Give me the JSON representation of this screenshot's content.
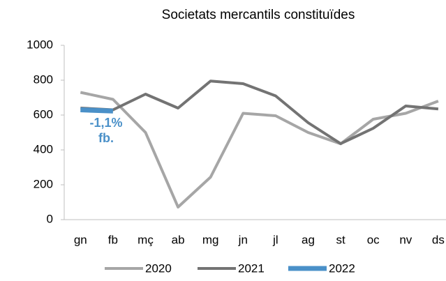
{
  "chart_data": {
    "type": "line",
    "title": "Societats mercantils  constituïdes",
    "categories": [
      "gn",
      "fb",
      "mç",
      "ab",
      "mg",
      "jn",
      "jl",
      "ag",
      "st",
      "oc",
      "nv",
      "ds"
    ],
    "series": [
      {
        "name": "2020",
        "color": "#a6a6a6",
        "values": [
          730,
          690,
          500,
          72,
          244,
          610,
          596,
          500,
          435,
          576,
          610,
          680
        ]
      },
      {
        "name": "2021",
        "color": "#737373",
        "values": [
          640,
          630,
          720,
          640,
          795,
          780,
          710,
          556,
          436,
          524,
          652,
          635
        ]
      },
      {
        "name": "2022",
        "color": "#4a90c8",
        "values": [
          630,
          623,
          null,
          null,
          null,
          null,
          null,
          null,
          null,
          null,
          null,
          null
        ]
      }
    ],
    "ylim": [
      0,
      1000
    ],
    "yticks": [
      0,
      200,
      400,
      600,
      800,
      1000
    ],
    "annotations": [
      "-1,1%",
      "fb."
    ]
  }
}
